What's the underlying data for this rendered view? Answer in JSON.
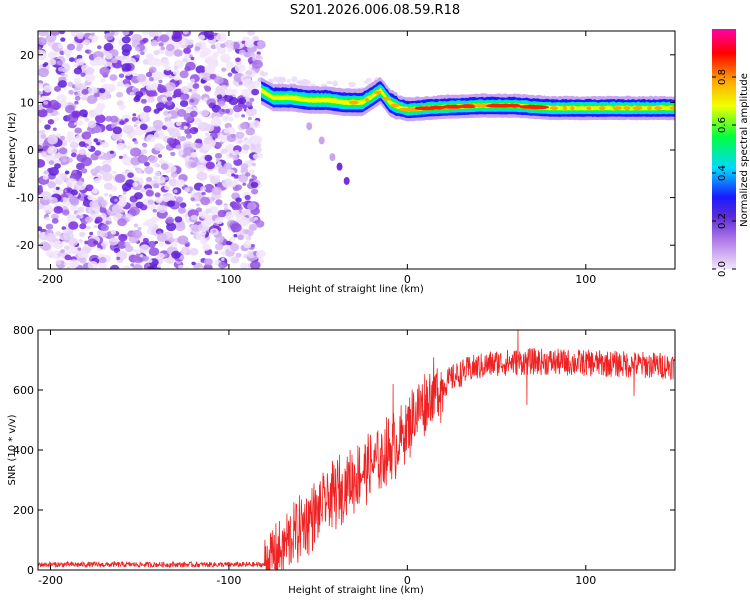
{
  "title": "S201.2026.006.08.59.R18",
  "chart_data": [
    {
      "type": "heatmap",
      "name": "spectrogram",
      "xlabel": "Height of straight line (km)",
      "ylabel": "Frequency (Hz)",
      "xlim": [
        -207,
        150
      ],
      "ylim": [
        -25,
        25
      ],
      "x_ticks": [
        -200,
        -100,
        0,
        100
      ],
      "y_ticks": [
        -20,
        -10,
        0,
        10,
        20
      ],
      "tick_labels_x": [
        "-200",
        "-100",
        "0",
        "100"
      ],
      "tick_labels_y": [
        "-20",
        "-10",
        "0",
        "10",
        "20"
      ],
      "noise_region_x": [
        -207,
        -82
      ],
      "signal_track": [
        {
          "x": -82,
          "f": 12.5
        },
        {
          "x": -75,
          "f": 11.0
        },
        {
          "x": -65,
          "f": 11.0
        },
        {
          "x": -55,
          "f": 10.5
        },
        {
          "x": -45,
          "f": 10.5
        },
        {
          "x": -35,
          "f": 10.0
        },
        {
          "x": -25,
          "f": 10.0
        },
        {
          "x": -15,
          "f": 12.5
        },
        {
          "x": -10,
          "f": 10.0
        },
        {
          "x": -5,
          "f": 9.0
        },
        {
          "x": 0,
          "f": 8.5
        },
        {
          "x": 20,
          "f": 9.0
        },
        {
          "x": 40,
          "f": 9.3
        },
        {
          "x": 60,
          "f": 9.3
        },
        {
          "x": 80,
          "f": 8.8
        },
        {
          "x": 100,
          "f": 8.8
        },
        {
          "x": 120,
          "f": 8.8
        },
        {
          "x": 150,
          "f": 8.8
        }
      ],
      "ghost_trace": [
        {
          "x": -55,
          "f": 5.0
        },
        {
          "x": -48,
          "f": 2.0
        },
        {
          "x": -42,
          "f": -1.5
        },
        {
          "x": -38,
          "f": -3.5
        },
        {
          "x": -34,
          "f": -6.5
        }
      ],
      "colorbar": {
        "label": "Normalized spectral amplitude",
        "range": [
          0,
          1
        ],
        "ticks": [
          "0.0",
          "0.2",
          "0.4",
          "0.6",
          "0.8"
        ],
        "tick_values": [
          0,
          0.2,
          0.4,
          0.6,
          0.8
        ],
        "colors": [
          "#f2e6fa",
          "#7a2be0",
          "#1a1aff",
          "#00d8ff",
          "#00ff40",
          "#f0ff00",
          "#ffaa00",
          "#ff0000",
          "#ff00aa"
        ]
      }
    },
    {
      "type": "line",
      "name": "snr",
      "xlabel": "Height of straight line (km)",
      "ylabel": "SNR (10 * v/v)",
      "xlim": [
        -207,
        150
      ],
      "ylim": [
        0,
        800
      ],
      "x_ticks": [
        -200,
        -100,
        0,
        100
      ],
      "y_ticks": [
        0,
        200,
        400,
        600,
        800
      ],
      "tick_labels_x": [
        "-200",
        "-100",
        "0",
        "100"
      ],
      "tick_labels_y": [
        "0",
        "200",
        "400",
        "600",
        "800"
      ],
      "color": "#ee2222",
      "envelope": [
        {
          "x": -207,
          "y": 18
        },
        {
          "x": -80,
          "y": 18
        },
        {
          "x": -75,
          "y": 40
        },
        {
          "x": -65,
          "y": 110
        },
        {
          "x": -55,
          "y": 170
        },
        {
          "x": -45,
          "y": 230
        },
        {
          "x": -35,
          "y": 280
        },
        {
          "x": -25,
          "y": 330
        },
        {
          "x": -15,
          "y": 370
        },
        {
          "x": -5,
          "y": 430
        },
        {
          "x": 5,
          "y": 520
        },
        {
          "x": 15,
          "y": 590
        },
        {
          "x": 25,
          "y": 640
        },
        {
          "x": 35,
          "y": 670
        },
        {
          "x": 50,
          "y": 690
        },
        {
          "x": 70,
          "y": 695
        },
        {
          "x": 100,
          "y": 690
        },
        {
          "x": 150,
          "y": 680
        }
      ],
      "notable_points": [
        {
          "x": -8,
          "y": 620
        },
        {
          "x": 62,
          "y": 810
        },
        {
          "x": 67,
          "y": 550
        },
        {
          "x": 127,
          "y": 580
        }
      ]
    }
  ]
}
